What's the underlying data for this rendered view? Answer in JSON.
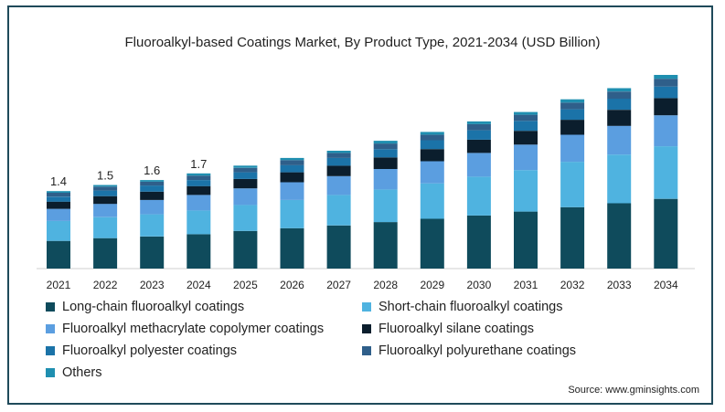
{
  "chart_data": {
    "type": "bar",
    "stacked": true,
    "title": "Fluoroalkyl-based Coatings Market, By Product Type, 2021-2034 (USD Billion)",
    "xlabel": "",
    "ylabel": "",
    "categories": [
      "2021",
      "2022",
      "2023",
      "2024",
      "2025",
      "2026",
      "2027",
      "2028",
      "2029",
      "2030",
      "2031",
      "2032",
      "2033",
      "2034"
    ],
    "ylim": [
      0,
      3.5
    ],
    "grid": false,
    "legend_position": "bottom",
    "data_labels": [
      "1.4",
      "1.5",
      "1.6",
      "1.7",
      "",
      "",
      "",
      "",
      "",
      "",
      "",
      "",
      "",
      ""
    ],
    "series": [
      {
        "name": "Long-chain fluoroalkyl coatings",
        "color": "#0f4b5c",
        "values": [
          0.5,
          0.55,
          0.58,
          0.62,
          0.68,
          0.73,
          0.78,
          0.84,
          0.9,
          0.96,
          1.03,
          1.11,
          1.18,
          1.26
        ]
      },
      {
        "name": "Short-chain fluoroalkyl coatings",
        "color": "#4fb3e0",
        "values": [
          0.36,
          0.38,
          0.4,
          0.43,
          0.47,
          0.51,
          0.55,
          0.59,
          0.64,
          0.7,
          0.75,
          0.82,
          0.88,
          0.95
        ]
      },
      {
        "name": "Fluoroalkyl methacrylate copolymer coatings",
        "color": "#5b9ee0",
        "values": [
          0.22,
          0.24,
          0.26,
          0.28,
          0.3,
          0.32,
          0.34,
          0.37,
          0.4,
          0.43,
          0.46,
          0.49,
          0.52,
          0.56
        ]
      },
      {
        "name": "Fluoroalkyl silane coatings",
        "color": "#0b1e2d",
        "values": [
          0.13,
          0.14,
          0.15,
          0.16,
          0.17,
          0.18,
          0.19,
          0.21,
          0.22,
          0.24,
          0.25,
          0.27,
          0.29,
          0.31
        ]
      },
      {
        "name": "Fluoroalkyl polyester coatings",
        "color": "#1b73a8",
        "values": [
          0.09,
          0.1,
          0.11,
          0.11,
          0.12,
          0.13,
          0.14,
          0.15,
          0.16,
          0.17,
          0.18,
          0.19,
          0.2,
          0.21
        ]
      },
      {
        "name": "Fluoroalkyl polyurethane coatings",
        "color": "#2f5f8a",
        "values": [
          0.07,
          0.07,
          0.07,
          0.08,
          0.08,
          0.09,
          0.09,
          0.1,
          0.1,
          0.11,
          0.11,
          0.12,
          0.13,
          0.14
        ]
      },
      {
        "name": "Others",
        "color": "#1f8fb0",
        "values": [
          0.03,
          0.03,
          0.03,
          0.04,
          0.04,
          0.04,
          0.04,
          0.05,
          0.05,
          0.05,
          0.05,
          0.06,
          0.06,
          0.07
        ]
      }
    ],
    "source": "Source: www.gminsights.com"
  }
}
